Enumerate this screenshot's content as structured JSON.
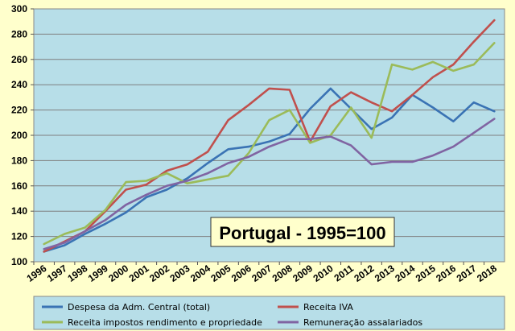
{
  "chart_data": {
    "type": "line",
    "title": "Portugal - 1995=100",
    "xlabel": "",
    "ylabel": "",
    "ylim": [
      100,
      300
    ],
    "ytick_step": 20,
    "grid": true,
    "legend_position": "bottom",
    "categories": [
      "1996",
      "1997",
      "1998",
      "1999",
      "2000",
      "2001",
      "2002",
      "2003",
      "2004",
      "2005",
      "2006",
      "2007",
      "2008",
      "2009",
      "2010",
      "2011",
      "2012",
      "2013",
      "2014",
      "2015",
      "2016",
      "2017",
      "2018"
    ],
    "series": [
      {
        "name": "Despesa da Adm. Central (total)",
        "color": "#3a73b4",
        "values": [
          108,
          113,
          122,
          130,
          139,
          151,
          157,
          166,
          178,
          189,
          191,
          195,
          201,
          221,
          237,
          221,
          205,
          214,
          232,
          222,
          211,
          226,
          219
        ]
      },
      {
        "name": "Receita IVA",
        "color": "#c0504d",
        "values": [
          108,
          116,
          124,
          140,
          157,
          161,
          172,
          177,
          187,
          212,
          224,
          237,
          236,
          195,
          223,
          234,
          226,
          219,
          232,
          246,
          256,
          274,
          291
        ]
      },
      {
        "name": "Receita impostos rendimento e propriedade",
        "color": "#9bbb59",
        "values": [
          114,
          122,
          127,
          141,
          163,
          164,
          170,
          162,
          165,
          168,
          186,
          212,
          220,
          194,
          200,
          222,
          198,
          256,
          252,
          258,
          251,
          256,
          273
        ]
      },
      {
        "name": "Remuneração assalariados",
        "color": "#8064a2",
        "values": [
          110,
          115,
          124,
          133,
          145,
          153,
          160,
          164,
          170,
          178,
          183,
          191,
          197,
          197,
          199,
          192,
          177,
          179,
          179,
          184,
          191,
          202,
          213
        ]
      }
    ]
  }
}
